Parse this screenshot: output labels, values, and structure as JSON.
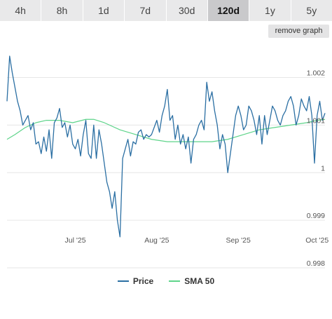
{
  "tabs": [
    "4h",
    "8h",
    "1d",
    "7d",
    "30d",
    "120d",
    "1y",
    "5y"
  ],
  "active_tab": "120d",
  "remove_graph_label": "remove graph",
  "colors": {
    "price": "#2b6fa3",
    "sma": "#5ed48a",
    "grid": "#e6e6e6",
    "tab_bg": "#e9e9ea",
    "tab_active_bg": "#c9c9cb"
  },
  "chart_data": {
    "type": "line",
    "x_range": [
      "2025-06-05",
      "2025-10-04"
    ],
    "x_ticks": [
      {
        "date": "2025-07-01",
        "label": "Jul '25"
      },
      {
        "date": "2025-08-01",
        "label": "Aug '25"
      },
      {
        "date": "2025-09-01",
        "label": "Sep '25"
      },
      {
        "date": "2025-10-01",
        "label": "Oct '25"
      }
    ],
    "y_ticks": [
      {
        "value": 1.002,
        "label": "1.002"
      },
      {
        "value": 1.001,
        "label": "1.001"
      },
      {
        "value": 1.0,
        "label": "1"
      },
      {
        "value": 0.999,
        "label": "0.999"
      },
      {
        "value": 0.998,
        "label": "0.998"
      }
    ],
    "ylim": [
      0.998,
      1.0027
    ],
    "grid": true,
    "legend_position": "bottom",
    "series": [
      {
        "name": "Price",
        "color": "#2b6fa3",
        "points": [
          [
            "2025-06-05",
            1.0015
          ],
          [
            "2025-06-06",
            1.00245
          ],
          [
            "2025-06-07",
            1.0021
          ],
          [
            "2025-06-08",
            1.0018
          ],
          [
            "2025-06-09",
            1.0015
          ],
          [
            "2025-06-10",
            1.0013
          ],
          [
            "2025-06-11",
            1.001
          ],
          [
            "2025-06-12",
            1.0011
          ],
          [
            "2025-06-13",
            1.0012
          ],
          [
            "2025-06-14",
            1.0009
          ],
          [
            "2025-06-15",
            1.00105
          ],
          [
            "2025-06-16",
            1.0006
          ],
          [
            "2025-06-17",
            1.00065
          ],
          [
            "2025-06-18",
            1.0004
          ],
          [
            "2025-06-19",
            1.00075
          ],
          [
            "2025-06-20",
            1.00045
          ],
          [
            "2025-06-21",
            1.0009
          ],
          [
            "2025-06-22",
            1.0003
          ],
          [
            "2025-06-23",
            1.00105
          ],
          [
            "2025-06-24",
            1.00115
          ],
          [
            "2025-06-25",
            1.00135
          ],
          [
            "2025-06-26",
            1.00095
          ],
          [
            "2025-06-27",
            1.00105
          ],
          [
            "2025-06-28",
            1.00075
          ],
          [
            "2025-06-29",
            1.001
          ],
          [
            "2025-06-30",
            1.0006
          ],
          [
            "2025-07-01",
            1.0005
          ],
          [
            "2025-07-02",
            1.0007
          ],
          [
            "2025-07-03",
            1.00035
          ],
          [
            "2025-07-04",
            1.0008
          ],
          [
            "2025-07-05",
            1.0011
          ],
          [
            "2025-07-06",
            1.0004
          ],
          [
            "2025-07-07",
            1.0003
          ],
          [
            "2025-07-08",
            1.001
          ],
          [
            "2025-07-09",
            1.0003
          ],
          [
            "2025-07-10",
            1.0009
          ],
          [
            "2025-07-11",
            1.0006
          ],
          [
            "2025-07-12",
            1.0002
          ],
          [
            "2025-07-13",
            0.9998
          ],
          [
            "2025-07-14",
            0.9996
          ],
          [
            "2025-07-15",
            0.99925
          ],
          [
            "2025-07-16",
            0.9996
          ],
          [
            "2025-07-17",
            0.999
          ],
          [
            "2025-07-18",
            0.99865
          ],
          [
            "2025-07-19",
            1.0003
          ],
          [
            "2025-07-20",
            1.0005
          ],
          [
            "2025-07-21",
            1.0007
          ],
          [
            "2025-07-22",
            1.00035
          ],
          [
            "2025-07-23",
            1.00065
          ],
          [
            "2025-07-24",
            1.0006
          ],
          [
            "2025-07-25",
            1.00085
          ],
          [
            "2025-07-26",
            1.0009
          ],
          [
            "2025-07-27",
            1.0007
          ],
          [
            "2025-07-28",
            1.0008
          ],
          [
            "2025-07-29",
            1.00075
          ],
          [
            "2025-07-30",
            1.0008
          ],
          [
            "2025-07-31",
            1.00095
          ],
          [
            "2025-08-01",
            1.0011
          ],
          [
            "2025-08-02",
            1.00085
          ],
          [
            "2025-08-03",
            1.0012
          ],
          [
            "2025-08-04",
            1.0014
          ],
          [
            "2025-08-05",
            1.00175
          ],
          [
            "2025-08-06",
            1.0011
          ],
          [
            "2025-08-07",
            1.0012
          ],
          [
            "2025-08-08",
            1.0007
          ],
          [
            "2025-08-09",
            1.001
          ],
          [
            "2025-08-10",
            1.0006
          ],
          [
            "2025-08-11",
            1.0008
          ],
          [
            "2025-08-12",
            1.0005
          ],
          [
            "2025-08-13",
            1.00075
          ],
          [
            "2025-08-14",
            1.0002
          ],
          [
            "2025-08-15",
            1.0007
          ],
          [
            "2025-08-16",
            1.0008
          ],
          [
            "2025-08-17",
            1.001
          ],
          [
            "2025-08-18",
            1.0011
          ],
          [
            "2025-08-19",
            1.0009
          ],
          [
            "2025-08-20",
            1.0019
          ],
          [
            "2025-08-21",
            1.0015
          ],
          [
            "2025-08-22",
            1.0017
          ],
          [
            "2025-08-23",
            1.0013
          ],
          [
            "2025-08-24",
            1.001
          ],
          [
            "2025-08-25",
            1.0005
          ],
          [
            "2025-08-26",
            1.0008
          ],
          [
            "2025-08-27",
            1.0006
          ],
          [
            "2025-08-28",
            1.0
          ],
          [
            "2025-08-29",
            1.0004
          ],
          [
            "2025-08-30",
            1.0008
          ],
          [
            "2025-08-31",
            1.0012
          ],
          [
            "2025-09-01",
            1.0014
          ],
          [
            "2025-09-02",
            1.0012
          ],
          [
            "2025-09-03",
            1.0009
          ],
          [
            "2025-09-04",
            1.001
          ],
          [
            "2025-09-05",
            1.0014
          ],
          [
            "2025-09-06",
            1.0013
          ],
          [
            "2025-09-07",
            1.0011
          ],
          [
            "2025-09-08",
            1.0008
          ],
          [
            "2025-09-09",
            1.0012
          ],
          [
            "2025-09-10",
            1.0006
          ],
          [
            "2025-09-11",
            1.0012
          ],
          [
            "2025-09-12",
            1.0008
          ],
          [
            "2025-09-13",
            1.0011
          ],
          [
            "2025-09-14",
            1.0014
          ],
          [
            "2025-09-15",
            1.0013
          ],
          [
            "2025-09-16",
            1.0011
          ],
          [
            "2025-09-17",
            1.001
          ],
          [
            "2025-09-18",
            1.0012
          ],
          [
            "2025-09-19",
            1.0013
          ],
          [
            "2025-09-20",
            1.0015
          ],
          [
            "2025-09-21",
            1.0016
          ],
          [
            "2025-09-22",
            1.0014
          ],
          [
            "2025-09-23",
            1.001
          ],
          [
            "2025-09-24",
            1.0012
          ],
          [
            "2025-09-25",
            1.00155
          ],
          [
            "2025-09-26",
            1.0014
          ],
          [
            "2025-09-27",
            1.0013
          ],
          [
            "2025-09-28",
            1.0016
          ],
          [
            "2025-09-29",
            1.0012
          ],
          [
            "2025-09-30",
            1.0002
          ],
          [
            "2025-10-01",
            1.0012
          ],
          [
            "2025-10-02",
            1.0015
          ],
          [
            "2025-10-03",
            1.0011
          ],
          [
            "2025-10-04",
            1.00125
          ]
        ]
      },
      {
        "name": "SMA 50",
        "color": "#5ed48a",
        "points": [
          [
            "2025-06-05",
            1.0007
          ],
          [
            "2025-06-08",
            1.0008
          ],
          [
            "2025-06-12",
            1.00095
          ],
          [
            "2025-06-16",
            1.00105
          ],
          [
            "2025-06-20",
            1.0011
          ],
          [
            "2025-06-25",
            1.0011
          ],
          [
            "2025-06-30",
            1.00105
          ],
          [
            "2025-07-05",
            1.00112
          ],
          [
            "2025-07-08",
            1.00112
          ],
          [
            "2025-07-12",
            1.00105
          ],
          [
            "2025-07-18",
            1.0009
          ],
          [
            "2025-07-24",
            1.0008
          ],
          [
            "2025-07-30",
            1.0007
          ],
          [
            "2025-08-05",
            1.00065
          ],
          [
            "2025-08-10",
            1.00065
          ],
          [
            "2025-08-16",
            1.00065
          ],
          [
            "2025-08-22",
            1.00065
          ],
          [
            "2025-08-28",
            1.0007
          ],
          [
            "2025-09-03",
            1.0008
          ],
          [
            "2025-09-09",
            1.0009
          ],
          [
            "2025-09-15",
            1.00095
          ],
          [
            "2025-09-21",
            1.001
          ],
          [
            "2025-09-27",
            1.00105
          ],
          [
            "2025-10-01",
            1.0011
          ],
          [
            "2025-10-04",
            1.00112
          ]
        ]
      }
    ]
  }
}
